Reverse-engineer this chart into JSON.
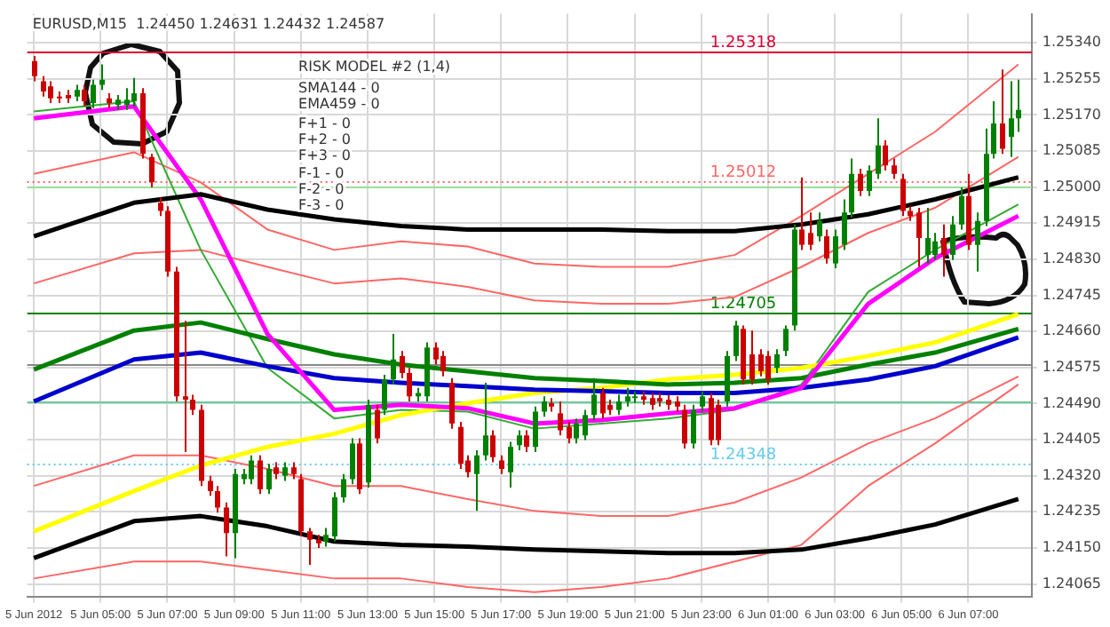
{
  "chart_data": {
    "type": "candlestick",
    "title": "EURUSD,M15  1.24450 1.24631 1.24432 1.24587",
    "annotations": [
      "RISK MODEL #2 (1,4)",
      "SMA144 - 0",
      "EMA459 - 0",
      "F+1 - 0",
      "F+2 - 0",
      "F+3 - 0",
      "F-1 - 0",
      "F-2 - 0",
      "F-3 - 0"
    ],
    "x": [
      "2012-06-05T03:00",
      "2012-06-05T03:15",
      "2012-06-05T03:30",
      "2012-06-05T03:45",
      "2012-06-05T04:00",
      "2012-06-05T04:15",
      "2012-06-05T04:30",
      "2012-06-05T04:45",
      "2012-06-05T05:00",
      "2012-06-05T05:15",
      "2012-06-05T05:30",
      "2012-06-05T05:45",
      "2012-06-05T06:00",
      "2012-06-05T06:15",
      "2012-06-05T06:30",
      "2012-06-05T06:45",
      "2012-06-05T07:00",
      "2012-06-05T07:15",
      "2012-06-05T07:30",
      "2012-06-05T07:45",
      "2012-06-05T08:00",
      "2012-06-05T08:15",
      "2012-06-05T08:30",
      "2012-06-05T08:45",
      "2012-06-05T09:00",
      "2012-06-05T09:15",
      "2012-06-05T09:30",
      "2012-06-05T09:45",
      "2012-06-05T10:00",
      "2012-06-05T10:15",
      "2012-06-05T10:30",
      "2012-06-05T10:45",
      "2012-06-05T11:00",
      "2012-06-05T11:15",
      "2012-06-05T11:30",
      "2012-06-05T11:45",
      "2012-06-05T12:00",
      "2012-06-05T12:15",
      "2012-06-05T12:30",
      "2012-06-05T12:45",
      "2012-06-05T13:00",
      "2012-06-05T13:15",
      "2012-06-05T13:30",
      "2012-06-05T13:45",
      "2012-06-05T14:00",
      "2012-06-05T14:15",
      "2012-06-05T14:30",
      "2012-06-05T14:45",
      "2012-06-05T15:00",
      "2012-06-05T15:15",
      "2012-06-05T15:30",
      "2012-06-05T15:45",
      "2012-06-05T16:00",
      "2012-06-05T16:15",
      "2012-06-05T16:30",
      "2012-06-05T16:45",
      "2012-06-05T17:00",
      "2012-06-05T17:15",
      "2012-06-05T17:30",
      "2012-06-05T17:45",
      "2012-06-05T18:00",
      "2012-06-05T18:15",
      "2012-06-05T18:30",
      "2012-06-05T18:45",
      "2012-06-05T19:00",
      "2012-06-05T19:15",
      "2012-06-05T19:30",
      "2012-06-05T19:45",
      "2012-06-05T20:00",
      "2012-06-05T20:15",
      "2012-06-05T20:30",
      "2012-06-05T20:45",
      "2012-06-05T21:00",
      "2012-06-05T21:15",
      "2012-06-05T21:30",
      "2012-06-05T21:45",
      "2012-06-05T22:00",
      "2012-06-05T22:15",
      "2012-06-05T22:30",
      "2012-06-05T22:45",
      "2012-06-05T23:00",
      "2012-06-05T23:15",
      "2012-06-05T23:30",
      "2012-06-05T23:45",
      "2012-06-06T00:00",
      "2012-06-06T00:15",
      "2012-06-06T00:30",
      "2012-06-06T00:45",
      "2012-06-06T01:00",
      "2012-06-06T01:15",
      "2012-06-06T01:30",
      "2012-06-06T01:45",
      "2012-06-06T02:00",
      "2012-06-06T02:15",
      "2012-06-06T02:30",
      "2012-06-06T02:45",
      "2012-06-06T03:00",
      "2012-06-06T03:15",
      "2012-06-06T03:30",
      "2012-06-06T03:45",
      "2012-06-06T04:00",
      "2012-06-06T04:15",
      "2012-06-06T04:30",
      "2012-06-06T04:45",
      "2012-06-06T05:00",
      "2012-06-06T05:15",
      "2012-06-06T05:30",
      "2012-06-06T05:45",
      "2012-06-06T06:00",
      "2012-06-06T06:15",
      "2012-06-06T06:30",
      "2012-06-06T06:45",
      "2012-06-06T07:00",
      "2012-06-06T07:15",
      "2012-06-06T07:30",
      "2012-06-06T07:45",
      "2012-06-06T08:00",
      "2012-06-06T08:15",
      "2012-06-06T08:30"
    ],
    "ohlc": [
      [
        1.25297,
        1.25309,
        1.25249,
        1.25261
      ],
      [
        1.25249,
        1.25261,
        1.25213,
        1.25225
      ],
      [
        1.25237,
        1.25249,
        1.25198,
        1.25209
      ],
      [
        1.25213,
        1.25225,
        1.25198,
        1.25209
      ],
      [
        1.25217,
        1.25229,
        1.25198,
        1.25209
      ],
      [
        1.25213,
        1.25241,
        1.25202,
        1.25229
      ],
      [
        1.25229,
        1.25241,
        1.2519,
        1.25202
      ],
      [
        1.25198,
        1.25253,
        1.25186,
        1.25241
      ],
      [
        1.25241,
        1.25289,
        1.25229,
        1.25253
      ],
      [
        1.25209,
        1.25221,
        1.25186,
        1.25198
      ],
      [
        1.25194,
        1.25217,
        1.25182,
        1.25206
      ],
      [
        1.25194,
        1.25233,
        1.25182,
        1.25206
      ],
      [
        1.25202,
        1.25257,
        1.2519,
        1.25221
      ],
      [
        1.25221,
        1.25233,
        1.25067,
        1.25078
      ],
      [
        1.25071,
        1.25078,
        1.24999,
        1.25011
      ],
      [
        1.24963,
        1.24975,
        1.24932,
        1.24944
      ],
      [
        1.24944,
        1.24955,
        1.24789,
        1.24801
      ],
      [
        1.24801,
        1.24812,
        1.24495,
        1.24507
      ],
      [
        1.24507,
        1.24685,
        1.24376,
        1.24499
      ],
      [
        1.24499,
        1.24511,
        1.24463,
        1.24475
      ],
      [
        1.24475,
        1.24487,
        1.24296,
        1.24308
      ],
      [
        1.24308,
        1.2432,
        1.24273,
        1.24284
      ],
      [
        1.24284,
        1.24296,
        1.24233,
        1.24245
      ],
      [
        1.24245,
        1.24257,
        1.2413,
        1.24185
      ],
      [
        1.24185,
        1.24336,
        1.24126,
        1.24324
      ],
      [
        1.24312,
        1.24336,
        1.243,
        1.24324
      ],
      [
        1.24312,
        1.24368,
        1.243,
        1.24356
      ],
      [
        1.24356,
        1.24368,
        1.24277,
        1.24288
      ],
      [
        1.24288,
        1.24348,
        1.24277,
        1.24336
      ],
      [
        1.2434,
        1.24352,
        1.24312,
        1.24324
      ],
      [
        1.2432,
        1.24352,
        1.24308,
        1.2434
      ],
      [
        1.2434,
        1.24352,
        1.24312,
        1.24324
      ],
      [
        1.24312,
        1.24324,
        1.24177,
        1.24189
      ],
      [
        1.24189,
        1.24197,
        1.2411,
        1.24169
      ],
      [
        1.24169,
        1.24181,
        1.2415,
        1.24161
      ],
      [
        1.24165,
        1.24197,
        1.24153,
        1.24181
      ],
      [
        1.24177,
        1.24281,
        1.24165,
        1.24269
      ],
      [
        1.24269,
        1.24324,
        1.24257,
        1.24312
      ],
      [
        1.24312,
        1.24408,
        1.243,
        1.24396
      ],
      [
        1.24396,
        1.24408,
        1.24277,
        1.24288
      ],
      [
        1.24304,
        1.24499,
        1.24292,
        1.24487
      ],
      [
        1.24475,
        1.24487,
        1.24396,
        1.24408
      ],
      [
        1.24475,
        1.24558,
        1.24463,
        1.24547
      ],
      [
        1.24547,
        1.24654,
        1.24535,
        1.24594
      ],
      [
        1.24602,
        1.24614,
        1.2455,
        1.24562
      ],
      [
        1.24562,
        1.24574,
        1.24495,
        1.24507
      ],
      [
        1.24507,
        1.24527,
        1.24495,
        1.24515
      ],
      [
        1.24507,
        1.24634,
        1.24495,
        1.24622
      ],
      [
        1.24622,
        1.24634,
        1.24582,
        1.24594
      ],
      [
        1.24602,
        1.24614,
        1.24554,
        1.24566
      ],
      [
        1.24539,
        1.2455,
        1.24431,
        1.24443
      ],
      [
        1.24435,
        1.24447,
        1.24336,
        1.24348
      ],
      [
        1.24356,
        1.24368,
        1.24316,
        1.24328
      ],
      [
        1.24324,
        1.2438,
        1.24237,
        1.24368
      ],
      [
        1.24368,
        1.24539,
        1.24356,
        1.24415
      ],
      [
        1.24415,
        1.24427,
        1.24352,
        1.24364
      ],
      [
        1.24356,
        1.24368,
        1.24324,
        1.24336
      ],
      [
        1.24328,
        1.244,
        1.24292,
        1.24388
      ],
      [
        1.24392,
        1.24427,
        1.2438,
        1.24415
      ],
      [
        1.24415,
        1.24427,
        1.24376,
        1.24388
      ],
      [
        1.24388,
        1.24483,
        1.24376,
        1.24471
      ],
      [
        1.24471,
        1.24507,
        1.24459,
        1.24495
      ],
      [
        1.24491,
        1.24503,
        1.24471,
        1.24483
      ],
      [
        1.24467,
        1.24495,
        1.24415,
        1.24427
      ],
      [
        1.24435,
        1.24447,
        1.24396,
        1.24408
      ],
      [
        1.24408,
        1.24455,
        1.24396,
        1.24443
      ],
      [
        1.24415,
        1.24475,
        1.24404,
        1.24463
      ],
      [
        1.24463,
        1.2455,
        1.24451,
        1.24511
      ],
      [
        1.24515,
        1.24527,
        1.24455,
        1.24467
      ],
      [
        1.24487,
        1.24499,
        1.24463,
        1.24475
      ],
      [
        1.24475,
        1.24511,
        1.24463,
        1.24495
      ],
      [
        1.24495,
        1.24527,
        1.24483,
        1.24507
      ],
      [
        1.24503,
        1.24519,
        1.24491,
        1.24507
      ],
      [
        1.24507,
        1.24519,
        1.24487,
        1.24499
      ],
      [
        1.24503,
        1.24515,
        1.24475,
        1.24487
      ],
      [
        1.24503,
        1.24515,
        1.24483,
        1.24495
      ],
      [
        1.24499,
        1.24511,
        1.24475,
        1.24487
      ],
      [
        1.24495,
        1.24507,
        1.24471,
        1.24483
      ],
      [
        1.24475,
        1.24487,
        1.24384,
        1.24396
      ],
      [
        1.24396,
        1.24487,
        1.24384,
        1.24475
      ],
      [
        1.24483,
        1.24519,
        1.24471,
        1.24507
      ],
      [
        1.24503,
        1.24515,
        1.24392,
        1.24404
      ],
      [
        1.24487,
        1.24499,
        1.24392,
        1.24404
      ],
      [
        1.24495,
        1.24614,
        1.24483,
        1.24602
      ],
      [
        1.24602,
        1.24685,
        1.2459,
        1.24674
      ],
      [
        1.24666,
        1.24674,
        1.24535,
        1.24547
      ],
      [
        1.24606,
        1.24662,
        1.24535,
        1.24547
      ],
      [
        1.24606,
        1.24618,
        1.24554,
        1.24566
      ],
      [
        1.24602,
        1.24614,
        1.24535,
        1.24547
      ],
      [
        1.24574,
        1.24618,
        1.24562,
        1.24606
      ],
      [
        1.24614,
        1.24674,
        1.24602,
        1.24666
      ],
      [
        1.24674,
        1.24912,
        1.24662,
        1.249
      ],
      [
        1.249,
        1.25023,
        1.24852,
        1.24864
      ],
      [
        1.24892,
        1.2494,
        1.24852,
        1.24864
      ],
      [
        1.24884,
        1.2494,
        1.24872,
        1.2492
      ],
      [
        1.24884,
        1.249,
        1.2482,
        1.24832
      ],
      [
        1.2482,
        1.249,
        1.24809,
        1.24884
      ],
      [
        1.24864,
        1.24971,
        1.24852,
        1.2494
      ],
      [
        1.2494,
        1.25067,
        1.24928,
        1.25031
      ],
      [
        1.25031,
        1.25043,
        1.24979,
        1.24991
      ],
      [
        1.24991,
        1.25051,
        1.24979,
        1.25039
      ],
      [
        1.25031,
        1.25162,
        1.25019,
        1.25098
      ],
      [
        1.25098,
        1.2511,
        1.25039,
        1.25051
      ],
      [
        1.25051,
        1.25067,
        1.25019,
        1.25031
      ],
      [
        1.25019,
        1.25031,
        1.24932,
        1.24944
      ],
      [
        1.24944,
        1.24955,
        1.2492,
        1.24932
      ],
      [
        1.2494,
        1.24951,
        1.24812,
        1.2488
      ],
      [
        1.2484,
        1.24951,
        1.2482,
        1.2488
      ],
      [
        1.2484,
        1.24892,
        1.24828,
        1.24872
      ],
      [
        1.2488,
        1.24912,
        1.24789,
        1.2484
      ],
      [
        1.2484,
        1.24932,
        1.24828,
        1.24912
      ],
      [
        1.24912,
        1.24999,
        1.249,
        1.24979
      ],
      [
        1.24979,
        1.25031,
        1.24852,
        1.24864
      ],
      [
        1.24864,
        1.2494,
        1.24801,
        1.2492
      ],
      [
        1.2492,
        1.25138,
        1.24908,
        1.25078
      ],
      [
        1.25078,
        1.25202,
        1.25067,
        1.2515
      ],
      [
        1.2515,
        1.25277,
        1.25078,
        1.2509
      ],
      [
        1.25118,
        1.25249,
        1.25071,
        1.25162
      ],
      [
        1.25162,
        1.25253,
        1.2513,
        1.25182
      ]
    ],
    "colors": [
      "#cc0000",
      "#cc0000",
      "#cc0000",
      "#cc0000",
      "#cc0000",
      "#008000",
      "#cc0000",
      "#008000",
      "#008000",
      "#cc0000",
      "#008000",
      "#008000",
      "#008000",
      "#cc0000",
      "#cc0000",
      "#cc0000",
      "#cc0000",
      "#cc0000",
      "#cc0000",
      "#cc0000",
      "#cc0000",
      "#cc0000",
      "#cc0000",
      "#cc0000",
      "#008000",
      "#008000",
      "#008000",
      "#cc0000",
      "#008000",
      "#cc0000",
      "#008000",
      "#cc0000",
      "#cc0000",
      "#cc0000",
      "#cc0000",
      "#008000",
      "#008000",
      "#008000",
      "#008000",
      "#cc0000",
      "#008000",
      "#cc0000",
      "#008000",
      "#008000",
      "#cc0000",
      "#cc0000",
      "#008000",
      "#008000",
      "#cc0000",
      "#cc0000",
      "#cc0000",
      "#cc0000",
      "#cc0000",
      "#008000",
      "#008000",
      "#cc0000",
      "#cc0000",
      "#008000",
      "#008000",
      "#cc0000",
      "#008000",
      "#008000",
      "#cc0000",
      "#cc0000",
      "#cc0000",
      "#008000",
      "#008000",
      "#008000",
      "#cc0000",
      "#cc0000",
      "#008000",
      "#008000",
      "#008000",
      "#cc0000",
      "#cc0000",
      "#cc0000",
      "#cc0000",
      "#cc0000",
      "#cc0000",
      "#008000",
      "#008000",
      "#cc0000",
      "#cc0000",
      "#008000",
      "#008000",
      "#cc0000",
      "#cc0000",
      "#cc0000",
      "#cc0000",
      "#008000",
      "#008000",
      "#008000",
      "#cc0000",
      "#cc0000",
      "#008000",
      "#cc0000",
      "#008000",
      "#008000",
      "#008000",
      "#cc0000",
      "#008000",
      "#008000",
      "#cc0000",
      "#cc0000",
      "#cc0000",
      "#cc0000",
      "#cc0000",
      "#008000",
      "#008000",
      "#cc0000",
      "#008000",
      "#008000",
      "#cc0000",
      "#008000",
      "#008000",
      "#008000",
      "#cc0000",
      "#008000",
      "#008000"
    ],
    "series": [
      {
        "type": "line",
        "color": "#000000",
        "x": [
          "2012-06-05T03:00",
          "2012-06-05T06:00",
          "2012-06-05T08:00",
          "2012-06-05T10:00",
          "2012-06-05T12:00",
          "2012-06-05T14:00",
          "2012-06-05T16:00",
          "2012-06-05T18:00",
          "2012-06-05T20:00",
          "2012-06-05T22:00",
          "2012-06-06T00:00",
          "2012-06-06T02:00",
          "2012-06-06T04:00",
          "2012-06-06T06:00",
          "2012-06-06T08:30"
        ],
        "values": [
          1.24884,
          1.24963,
          1.24983,
          1.24947,
          1.24924,
          1.24908,
          1.249,
          1.249,
          1.249,
          1.24896,
          1.24896,
          1.24912,
          1.24936,
          1.24971,
          1.25023
        ]
      },
      {
        "type": "line",
        "color": "#000000",
        "x": [
          "2012-06-05T03:00",
          "2012-06-05T06:00",
          "2012-06-05T08:00",
          "2012-06-05T10:00",
          "2012-06-05T12:00",
          "2012-06-05T14:00",
          "2012-06-05T16:00",
          "2012-06-05T18:00",
          "2012-06-05T20:00",
          "2012-06-05T22:00",
          "2012-06-06T00:00",
          "2012-06-06T02:00",
          "2012-06-06T04:00",
          "2012-06-06T06:00",
          "2012-06-06T08:30"
        ],
        "values": [
          1.24126,
          1.24213,
          1.24225,
          1.24201,
          1.24165,
          1.24157,
          1.24153,
          1.24146,
          1.24142,
          1.24138,
          1.24138,
          1.24146,
          1.24173,
          1.24205,
          1.24265
        ]
      },
      {
        "type": "line",
        "color": "#ff00ff",
        "x": [
          "2012-06-05T03:00",
          "2012-06-05T06:00",
          "2012-06-05T08:00",
          "2012-06-05T10:00",
          "2012-06-05T12:00",
          "2012-06-05T14:00",
          "2012-06-05T16:00",
          "2012-06-05T18:00",
          "2012-06-05T20:00",
          "2012-06-05T22:00",
          "2012-06-06T00:00",
          "2012-06-06T02:00",
          "2012-06-06T04:00",
          "2012-06-06T06:00",
          "2012-06-06T08:30"
        ],
        "values": [
          1.25162,
          1.2519,
          1.24971,
          1.24654,
          1.24475,
          1.24487,
          1.24479,
          1.24443,
          1.24451,
          1.24467,
          1.24479,
          1.24527,
          1.24725,
          1.24832,
          1.24932
        ]
      },
      {
        "type": "line",
        "color": "#008000",
        "x": [
          "2012-06-05T03:00",
          "2012-06-05T06:00",
          "2012-06-05T08:00",
          "2012-06-05T10:00",
          "2012-06-05T12:00",
          "2012-06-05T14:00",
          "2012-06-05T16:00",
          "2012-06-05T18:00",
          "2012-06-05T20:00",
          "2012-06-05T22:00",
          "2012-06-06T00:00",
          "2012-06-06T02:00",
          "2012-06-06T04:00",
          "2012-06-06T06:00",
          "2012-06-06T08:30"
        ],
        "values": [
          1.2457,
          1.24662,
          1.24681,
          1.24642,
          1.24606,
          1.24582,
          1.24566,
          1.2455,
          1.24543,
          1.24535,
          1.24539,
          1.2455,
          1.24582,
          1.2461,
          1.24666
        ]
      },
      {
        "type": "line",
        "color": "#0000cc",
        "x": [
          "2012-06-05T03:00",
          "2012-06-05T06:00",
          "2012-06-05T08:00",
          "2012-06-05T10:00",
          "2012-06-05T12:00",
          "2012-06-05T14:00",
          "2012-06-05T16:00",
          "2012-06-05T18:00",
          "2012-06-05T20:00",
          "2012-06-05T22:00",
          "2012-06-06T00:00",
          "2012-06-06T02:00",
          "2012-06-06T04:00",
          "2012-06-06T06:00",
          "2012-06-06T08:30"
        ],
        "values": [
          1.24495,
          1.24594,
          1.2461,
          1.24578,
          1.2455,
          1.24539,
          1.24531,
          1.24523,
          1.24519,
          1.24515,
          1.24515,
          1.24527,
          1.24547,
          1.24578,
          1.24646
        ]
      },
      {
        "type": "line",
        "color": "#ffff00",
        "x": [
          "2012-06-05T03:00",
          "2012-06-05T06:00",
          "2012-06-05T08:00",
          "2012-06-05T10:00",
          "2012-06-05T12:00",
          "2012-06-05T14:00",
          "2012-06-05T16:00",
          "2012-06-05T18:00",
          "2012-06-05T20:00",
          "2012-06-05T22:00",
          "2012-06-06T00:00",
          "2012-06-06T02:00",
          "2012-06-06T04:00",
          "2012-06-06T06:00",
          "2012-06-06T08:30"
        ],
        "values": [
          1.24189,
          1.24284,
          1.24344,
          1.24388,
          1.24419,
          1.24463,
          1.24491,
          1.24515,
          1.24527,
          1.24547,
          1.24558,
          1.24574,
          1.24602,
          1.24634,
          1.24701
        ]
      },
      {
        "type": "line",
        "color": "#33aa33",
        "x": [
          "2012-06-05T03:00",
          "2012-06-05T06:00",
          "2012-06-05T08:00",
          "2012-06-05T10:00",
          "2012-06-05T12:00",
          "2012-06-05T14:00",
          "2012-06-05T16:00",
          "2012-06-05T18:00",
          "2012-06-05T20:00",
          "2012-06-05T22:00",
          "2012-06-06T00:00",
          "2012-06-06T02:00",
          "2012-06-06T04:00",
          "2012-06-06T06:00",
          "2012-06-06T08:30"
        ],
        "values": [
          1.25178,
          1.25202,
          1.24852,
          1.24574,
          1.24455,
          1.24475,
          1.24471,
          1.24431,
          1.24443,
          1.24455,
          1.24475,
          1.24535,
          1.24753,
          1.24852,
          1.24959
        ]
      },
      {
        "type": "line",
        "color": "#ff6666",
        "x": [
          "2012-06-05T03:00",
          "2012-06-05T06:00",
          "2012-06-05T08:00",
          "2012-06-05T10:00",
          "2012-06-05T12:00",
          "2012-06-05T14:00",
          "2012-06-05T16:00",
          "2012-06-05T18:00",
          "2012-06-05T20:00",
          "2012-06-05T22:00",
          "2012-06-06T00:00",
          "2012-06-06T02:00",
          "2012-06-06T04:00",
          "2012-06-06T06:00",
          "2012-06-06T08:30"
        ],
        "values": [
          1.25031,
          1.25082,
          1.25011,
          1.249,
          1.24852,
          1.24872,
          1.2486,
          1.2482,
          1.24812,
          1.24812,
          1.2484,
          1.24932,
          1.25031,
          1.2513,
          1.25289
        ]
      },
      {
        "type": "line",
        "color": "#ff6666",
        "x": [
          "2012-06-05T03:00",
          "2012-06-05T06:00",
          "2012-06-05T08:00",
          "2012-06-05T10:00",
          "2012-06-05T12:00",
          "2012-06-05T14:00",
          "2012-06-05T16:00",
          "2012-06-05T18:00",
          "2012-06-05T20:00",
          "2012-06-05T22:00",
          "2012-06-06T00:00",
          "2012-06-06T02:00",
          "2012-06-06T04:00",
          "2012-06-06T06:00",
          "2012-06-06T08:30"
        ],
        "values": [
          1.24773,
          1.24844,
          1.24852,
          1.24812,
          1.24773,
          1.24785,
          1.24765,
          1.24733,
          1.24725,
          1.24725,
          1.24741,
          1.24812,
          1.24892,
          1.24951,
          1.25071
        ]
      },
      {
        "type": "line",
        "color": "#ff6666",
        "x": [
          "2012-06-05T03:00",
          "2012-06-05T06:00",
          "2012-06-05T08:00",
          "2012-06-05T10:00",
          "2012-06-05T12:00",
          "2012-06-05T14:00",
          "2012-06-05T16:00",
          "2012-06-05T18:00",
          "2012-06-05T20:00",
          "2012-06-05T22:00",
          "2012-06-06T00:00",
          "2012-06-06T02:00",
          "2012-06-06T04:00",
          "2012-06-06T06:00",
          "2012-06-06T08:30"
        ],
        "values": [
          1.24296,
          1.24368,
          1.24368,
          1.24336,
          1.24296,
          1.24296,
          1.24265,
          1.24237,
          1.24225,
          1.24225,
          1.24257,
          1.24316,
          1.24396,
          1.24455,
          1.24554
        ]
      },
      {
        "type": "line",
        "color": "#ff6666",
        "x": [
          "2012-06-05T03:00",
          "2012-06-05T06:00",
          "2012-06-05T08:00",
          "2012-06-05T10:00",
          "2012-06-05T12:00",
          "2012-06-05T14:00",
          "2012-06-05T16:00",
          "2012-06-05T18:00",
          "2012-06-05T20:00",
          "2012-06-05T22:00",
          "2012-06-06T00:00",
          "2012-06-06T02:00",
          "2012-06-06T04:00",
          "2012-06-06T06:00",
          "2012-06-06T08:30"
        ],
        "values": [
          1.24078,
          1.24118,
          1.24118,
          1.24098,
          1.24078,
          1.24078,
          1.24058,
          1.24046,
          1.24058,
          1.24078,
          1.24118,
          1.24157,
          1.24296,
          1.24396,
          1.24535
        ]
      }
    ],
    "ref_lines": [
      {
        "axis": "y",
        "value": 1.25318,
        "label": "1.25318",
        "color": "#dd0033"
      },
      {
        "axis": "y",
        "value": 1.25012,
        "label": "1.25012",
        "color": "#ff6666",
        "line_style": "dotted"
      },
      {
        "axis": "y",
        "value": 1.25,
        "color": "#99dd99"
      },
      {
        "axis": "y",
        "value": 1.24705,
        "label": "1.24705",
        "color": "#008000"
      },
      {
        "axis": "y",
        "value": 1.24582,
        "color": "#888888"
      },
      {
        "axis": "y",
        "value": 1.24495,
        "color": "#66cc99"
      },
      {
        "axis": "y",
        "value": 1.24348,
        "label": "1.24348",
        "color": "#66ccee",
        "line_style": "dotted"
      }
    ],
    "xlim": [
      "2012-06-05T02:48",
      "2012-06-06T08:54"
    ],
    "xticks": [
      {
        "value": "2012-06-05T03:00",
        "label": "5 Jun 2012"
      },
      {
        "value": "2012-06-05T05:00",
        "label": "5 Jun 05:00"
      },
      {
        "value": "2012-06-05T07:00",
        "label": "5 Jun 07:00"
      },
      {
        "value": "2012-06-05T09:00",
        "label": "5 Jun 09:00"
      },
      {
        "value": "2012-06-05T11:00",
        "label": "5 Jun 11:00"
      },
      {
        "value": "2012-06-05T13:00",
        "label": "5 Jun 13:00"
      },
      {
        "value": "2012-06-05T15:00",
        "label": "5 Jun 15:00"
      },
      {
        "value": "2012-06-05T17:00",
        "label": "5 Jun 17:00"
      },
      {
        "value": "2012-06-05T19:00",
        "label": "5 Jun 19:00"
      },
      {
        "value": "2012-06-05T21:00",
        "label": "5 Jun 21:00"
      },
      {
        "value": "2012-06-05T23:00",
        "label": "5 Jun 23:00"
      },
      {
        "value": "2012-06-06T01:00",
        "label": "6 Jun 01:00"
      },
      {
        "value": "2012-06-06T03:00",
        "label": "6 Jun 03:00"
      },
      {
        "value": "2012-06-06T05:00",
        "label": "6 Jun 05:00"
      },
      {
        "value": "2012-06-06T07:00",
        "label": "6 Jun 07:00"
      }
    ],
    "ylim": [
      1.24034,
      1.25408
    ],
    "yticks": [
      {
        "value": 1.24065,
        "label": "1.24065"
      },
      {
        "value": 1.2415,
        "label": "1.24150"
      },
      {
        "value": 1.24235,
        "label": "1.24235"
      },
      {
        "value": 1.2432,
        "label": "1.24320"
      },
      {
        "value": 1.24405,
        "label": "1.24405"
      },
      {
        "value": 1.2449,
        "label": "1.24490"
      },
      {
        "value": 1.24575,
        "label": "1.24575"
      },
      {
        "value": 1.2466,
        "label": "1.24660"
      },
      {
        "value": 1.24745,
        "label": "1.24745"
      },
      {
        "value": 1.2483,
        "label": "1.24830"
      },
      {
        "value": 1.24915,
        "label": "1.24915"
      },
      {
        "value": 1.25,
        "label": "1.25000"
      },
      {
        "value": 1.25085,
        "label": "1.25085"
      },
      {
        "value": 1.2517,
        "label": "1.25170"
      },
      {
        "value": 1.25255,
        "label": "1.25255"
      },
      {
        "value": 1.2534,
        "label": "1.25340"
      }
    ],
    "grid": true
  }
}
